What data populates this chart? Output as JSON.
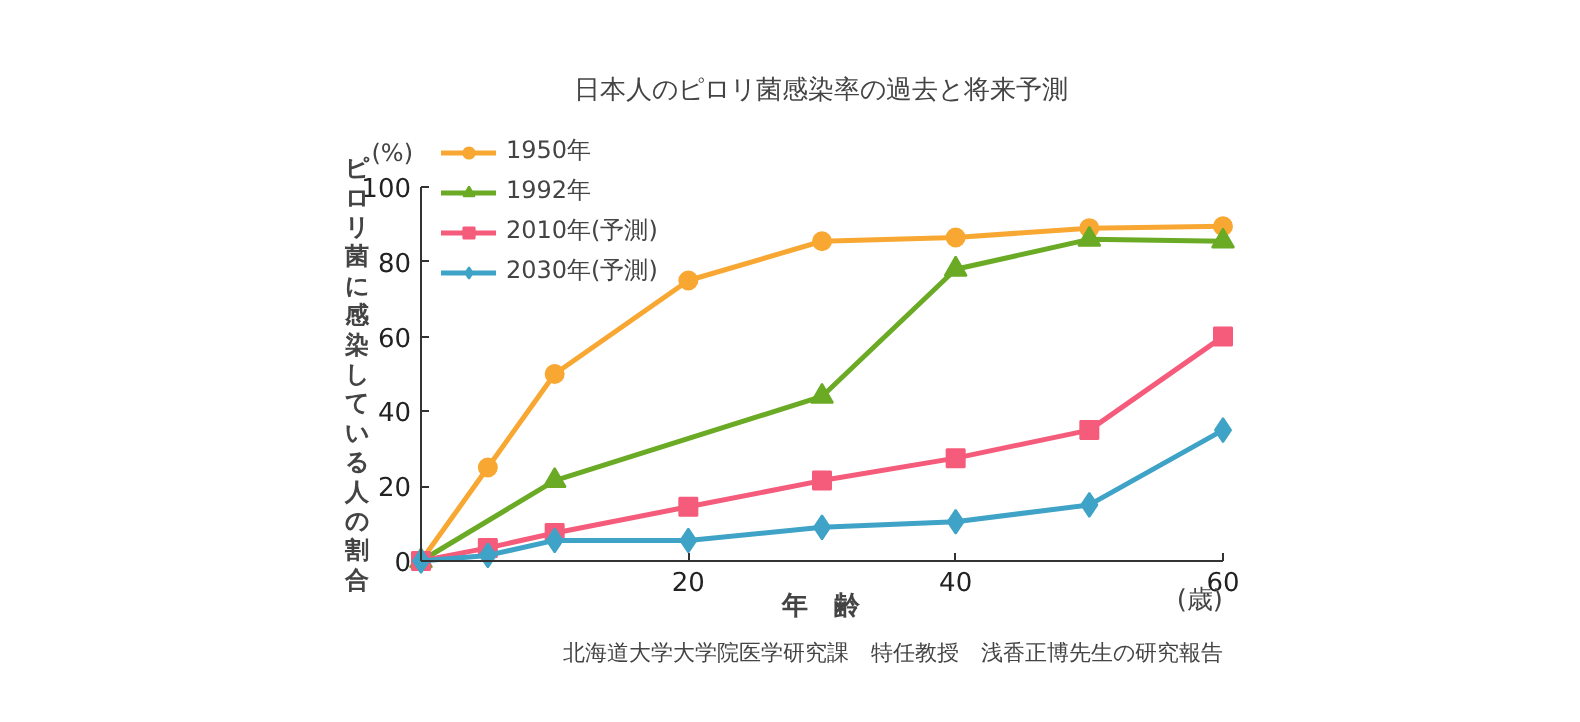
{
  "chart_data": {
    "type": "line",
    "title": "日本人のピロリ菌感染率の過去と将来予測",
    "xlabel": "年　齢",
    "ylabel": "ピロリ菌に感染している人の割合",
    "annotations": [
      "(%)",
      "(歳)",
      "北海道大学大学院医学研究課　特任教授　浅香正博先生の研究報告"
    ],
    "xlim": [
      0,
      60
    ],
    "xticks": [
      20,
      40,
      60
    ],
    "ylim": [
      0,
      100
    ],
    "yticks": [
      0,
      20,
      40,
      60,
      80,
      100
    ],
    "grid": false,
    "legend": "top left",
    "series": [
      {
        "name": "1950年",
        "color": "#f8a832",
        "marker": "circle",
        "x": [
          0,
          5,
          10,
          20,
          30,
          40,
          50,
          60
        ],
        "values": [
          0,
          25,
          50,
          75,
          85.5,
          86.5,
          89,
          89.5
        ]
      },
      {
        "name": "1992年",
        "color": "#6aaa24",
        "marker": "triangle",
        "x": [
          0,
          10,
          30,
          40,
          50,
          60
        ],
        "values": [
          0,
          21.5,
          44,
          78,
          86,
          85.5
        ]
      },
      {
        "name": "2010年(予測)",
        "color": "#f55b7a",
        "marker": "square",
        "x": [
          0,
          5,
          10,
          20,
          30,
          40,
          50,
          60
        ],
        "values": [
          0,
          3.5,
          7.5,
          14.5,
          21.5,
          27.5,
          35,
          60
        ]
      },
      {
        "name": "2030年(予測)",
        "color": "#3fa3c7",
        "marker": "diamond",
        "x": [
          0,
          5,
          10,
          20,
          30,
          40,
          50,
          60
        ],
        "values": [
          0,
          1.5,
          5.5,
          5.5,
          9,
          10.5,
          15,
          35
        ]
      }
    ]
  }
}
